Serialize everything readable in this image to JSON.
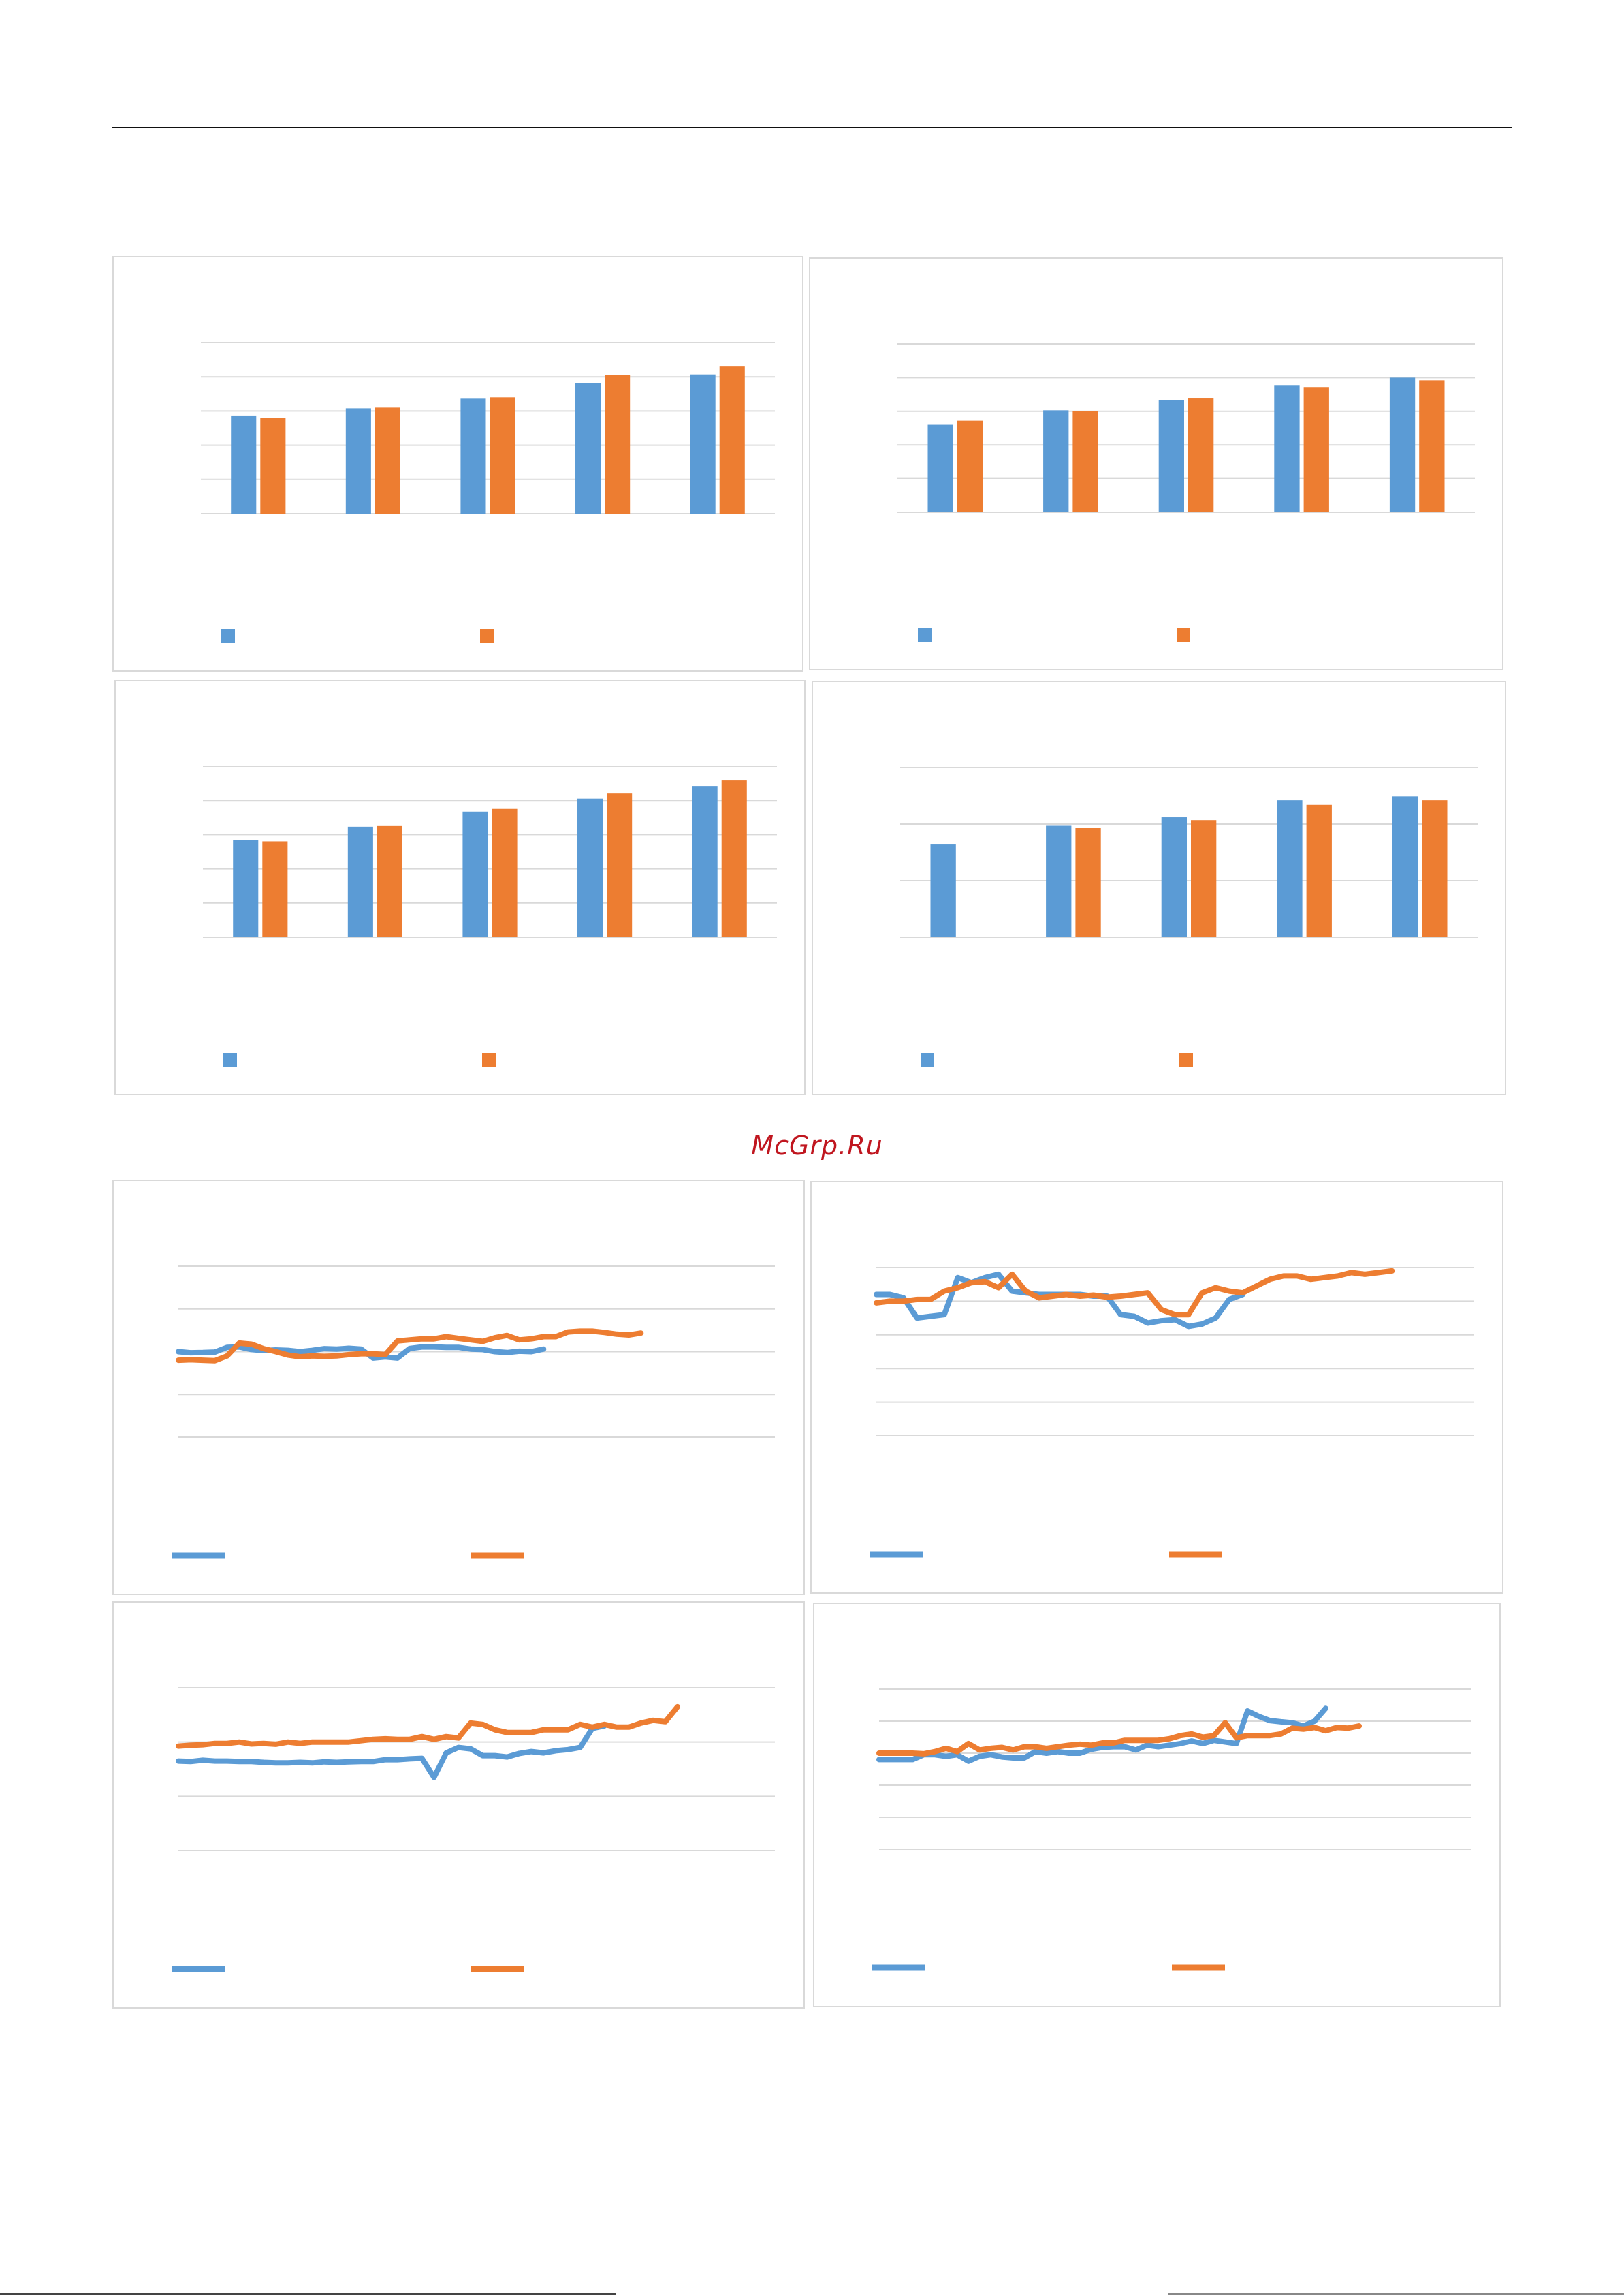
{
  "watermark": {
    "text": "McGrp.Ru",
    "color": "#c0161f"
  },
  "colors": {
    "series1": "#5b9bd5",
    "series2": "#ed7d31",
    "grid": "#d9d9d9"
  },
  "chart_data": [
    {
      "type": "bar",
      "categories": [
        "",
        "",
        "",
        "",
        ""
      ],
      "series": [
        {
          "values": [
            2.85,
            3.08,
            3.36,
            3.82,
            4.07
          ]
        },
        {
          "values": [
            2.8,
            3.1,
            3.4,
            4.05,
            4.3
          ]
        }
      ],
      "ylim": [
        0,
        5
      ],
      "yticks": [
        0,
        1,
        2,
        3,
        4,
        5
      ],
      "grid": true,
      "legend": "bottom"
    },
    {
      "type": "bar",
      "categories": [
        "",
        "",
        "",
        "",
        ""
      ],
      "series": [
        {
          "values": [
            2.6,
            3.03,
            3.32,
            3.78,
            4.0
          ]
        },
        {
          "values": [
            2.72,
            3.0,
            3.38,
            3.72,
            3.92
          ]
        }
      ],
      "ylim": [
        0,
        5
      ],
      "yticks": [
        0,
        1,
        2,
        3,
        4,
        5
      ],
      "grid": true,
      "legend": "bottom"
    },
    {
      "type": "bar",
      "categories": [
        "",
        "",
        "",
        "",
        ""
      ],
      "series": [
        {
          "values": [
            2.84,
            3.23,
            3.67,
            4.05,
            4.42
          ]
        },
        {
          "values": [
            2.8,
            3.25,
            3.75,
            4.2,
            4.6
          ]
        }
      ],
      "ylim": [
        0,
        5
      ],
      "yticks": [
        0,
        1,
        2,
        3,
        4,
        5
      ],
      "grid": true,
      "legend": "bottom"
    },
    {
      "type": "bar",
      "categories": [
        "",
        "",
        "",
        "",
        ""
      ],
      "series": [
        {
          "values": [
            1.65,
            1.97,
            2.12,
            2.42,
            2.49
          ]
        },
        {
          "values": [
            null,
            1.93,
            2.07,
            2.34,
            2.42
          ]
        }
      ],
      "ylim": [
        0,
        3
      ],
      "yticks": [
        0,
        1,
        2,
        3
      ],
      "grid": true,
      "legend": "bottom"
    },
    {
      "type": "line",
      "x": [
        1,
        2,
        3,
        4,
        5,
        6,
        7,
        8,
        9,
        10,
        11,
        12,
        13,
        14,
        15,
        16,
        17,
        18,
        19,
        20,
        21,
        22,
        23,
        24,
        25,
        26,
        27,
        28,
        29,
        30,
        31,
        32,
        33,
        34,
        35,
        36,
        37,
        38,
        39,
        40,
        41,
        42,
        43,
        44,
        45,
        46,
        47,
        48,
        49,
        50
      ],
      "series": [
        {
          "values": [
            2.0,
            1.95,
            1.96,
            1.98,
            2.2,
            2.22,
            2.1,
            2.05,
            2.08,
            2.06,
            2.0,
            2.06,
            2.14,
            2.12,
            2.16,
            2.12,
            1.7,
            1.75,
            1.7,
            2.15,
            2.22,
            2.22,
            2.2,
            2.2,
            2.12,
            2.1,
            2.0,
            1.96,
            2.02,
            2.0,
            2.12,
            null,
            null,
            null,
            null,
            null,
            null,
            null,
            null,
            null,
            null,
            null,
            null,
            null,
            null,
            null,
            null,
            null,
            null,
            null
          ]
        },
        {
          "values": [
            1.6,
            1.62,
            1.6,
            1.58,
            1.8,
            2.4,
            2.35,
            2.14,
            2.0,
            1.84,
            1.76,
            1.8,
            1.78,
            1.8,
            1.86,
            1.9,
            1.9,
            1.86,
            2.5,
            2.55,
            2.6,
            2.6,
            2.7,
            2.62,
            2.55,
            2.48,
            2.65,
            2.76,
            2.55,
            2.6,
            2.7,
            2.7,
            2.92,
            2.96,
            2.96,
            2.9,
            2.82,
            2.78,
            2.87,
            null,
            null,
            null,
            null,
            null,
            null,
            null,
            null,
            null,
            null,
            null
          ]
        }
      ],
      "ylim": [
        -2,
        6
      ],
      "yticks": [
        -2,
        0,
        2,
        4,
        6
      ],
      "grid": true,
      "legend": "bottom"
    },
    {
      "type": "line",
      "x": [
        1,
        2,
        3,
        4,
        5,
        6,
        7,
        8,
        9,
        10,
        11,
        12,
        13,
        14,
        15,
        16,
        17,
        18,
        19,
        20,
        21,
        22,
        23,
        24,
        25,
        26,
        27,
        28,
        29,
        30,
        31,
        32,
        33,
        34,
        35,
        36,
        37,
        38,
        39,
        40,
        41,
        42,
        43,
        44,
        45
      ],
      "series": [
        {
          "values": [
            3.2,
            3.2,
            3.1,
            2.5,
            2.55,
            2.6,
            3.7,
            3.55,
            3.7,
            3.8,
            3.3,
            3.25,
            3.2,
            3.2,
            3.2,
            3.2,
            3.15,
            3.15,
            2.6,
            2.55,
            2.35,
            2.42,
            2.45,
            2.25,
            2.32,
            2.5,
            3.05,
            3.2,
            null,
            null,
            null,
            null,
            null,
            null,
            null,
            null,
            null,
            null,
            null,
            null,
            null,
            null,
            null,
            null,
            null
          ]
        },
        {
          "values": [
            2.95,
            3.0,
            3.0,
            3.05,
            3.05,
            3.3,
            3.4,
            3.55,
            3.58,
            3.4,
            3.8,
            3.3,
            3.1,
            3.15,
            3.2,
            3.15,
            3.18,
            3.12,
            3.15,
            3.2,
            3.25,
            2.75,
            2.6,
            2.6,
            3.25,
            3.4,
            3.3,
            3.25,
            3.45,
            3.65,
            3.75,
            3.75,
            3.65,
            3.7,
            3.75,
            3.85,
            3.8,
            3.85,
            3.9,
            null,
            null,
            null,
            null,
            null,
            null
          ]
        }
      ],
      "ylim": [
        -1,
        4
      ],
      "yticks": [
        -1,
        0,
        1,
        2,
        3,
        4
      ],
      "grid": true,
      "legend": "bottom"
    },
    {
      "type": "line",
      "x": [
        1,
        2,
        3,
        4,
        5,
        6,
        7,
        8,
        9,
        10,
        11,
        12,
        13,
        14,
        15,
        16,
        17,
        18,
        19,
        20,
        21,
        22,
        23,
        24,
        25,
        26,
        27,
        28,
        29,
        30,
        31,
        32,
        33,
        34,
        35,
        36,
        37,
        38,
        39,
        40,
        41,
        42,
        43,
        44,
        45,
        46,
        47,
        48,
        49,
        50
      ],
      "series": [
        {
          "values": [
            1.3,
            1.28,
            1.33,
            1.3,
            1.3,
            1.28,
            1.28,
            1.25,
            1.23,
            1.23,
            1.25,
            1.23,
            1.27,
            1.25,
            1.27,
            1.28,
            1.28,
            1.35,
            1.35,
            1.38,
            1.4,
            0.7,
            1.6,
            1.8,
            1.75,
            1.5,
            1.5,
            1.45,
            1.58,
            1.65,
            1.6,
            1.68,
            1.72,
            1.8,
            2.5,
            2.6,
            null,
            null,
            null,
            null,
            null,
            null,
            null,
            null,
            null,
            null,
            null,
            null,
            null,
            null
          ]
        },
        {
          "values": [
            1.85,
            1.88,
            1.9,
            1.95,
            1.95,
            2.0,
            1.93,
            1.95,
            1.92,
            2.0,
            1.95,
            2.0,
            2.0,
            2.0,
            2.0,
            2.05,
            2.1,
            2.12,
            2.1,
            2.1,
            2.2,
            2.1,
            2.2,
            2.15,
            2.7,
            2.65,
            2.45,
            2.35,
            2.35,
            2.35,
            2.45,
            2.45,
            2.45,
            2.65,
            2.55,
            2.65,
            2.55,
            2.55,
            2.7,
            2.8,
            2.75,
            3.3,
            null,
            null,
            null,
            null,
            null,
            null,
            null,
            null
          ]
        }
      ],
      "ylim": [
        -2,
        4
      ],
      "yticks": [
        -2,
        0,
        2,
        4
      ],
      "grid": true,
      "legend": "bottom"
    },
    {
      "type": "line",
      "x": [
        1,
        2,
        3,
        4,
        5,
        6,
        7,
        8,
        9,
        10,
        11,
        12,
        13,
        14,
        15,
        16,
        17,
        18,
        19,
        20,
        21,
        22,
        23,
        24,
        25,
        26,
        27,
        28,
        29,
        30,
        31,
        32,
        33,
        34,
        35,
        36,
        37,
        38,
        39,
        40,
        41,
        42,
        43,
        44,
        45,
        46,
        47,
        48,
        49,
        50,
        51,
        52,
        53,
        54
      ],
      "series": [
        {
          "values": [
            1.8,
            1.8,
            1.8,
            1.8,
            1.95,
            1.95,
            1.9,
            1.95,
            1.75,
            1.9,
            1.95,
            1.88,
            1.85,
            1.85,
            2.05,
            2.0,
            2.05,
            2.0,
            2.0,
            2.12,
            2.18,
            2.2,
            2.2,
            2.1,
            2.25,
            2.2,
            2.25,
            2.3,
            2.38,
            2.3,
            2.4,
            2.35,
            2.3,
            3.32,
            3.15,
            3.02,
            2.98,
            2.95,
            2.85,
            3.0,
            3.4,
            null,
            null,
            null,
            null,
            null,
            null,
            null,
            null,
            null,
            null,
            null,
            null,
            null
          ]
        },
        {
          "values": [
            2.0,
            2.0,
            2.0,
            2.0,
            1.98,
            2.05,
            2.15,
            2.05,
            2.3,
            2.1,
            2.15,
            2.18,
            2.1,
            2.2,
            2.2,
            2.15,
            2.2,
            2.25,
            2.28,
            2.25,
            2.32,
            2.32,
            2.4,
            2.4,
            2.4,
            2.4,
            2.45,
            2.55,
            2.6,
            2.5,
            2.55,
            2.95,
            2.48,
            2.55,
            2.55,
            2.55,
            2.6,
            2.78,
            2.75,
            2.8,
            2.7,
            2.8,
            2.78,
            2.85,
            null,
            null,
            null,
            null,
            null,
            null,
            null,
            null,
            null,
            null
          ]
        }
      ],
      "ylim": [
        -1,
        4
      ],
      "yticks": [
        -1,
        0,
        1,
        2,
        3,
        4
      ],
      "grid": true,
      "legend": "bottom"
    }
  ]
}
